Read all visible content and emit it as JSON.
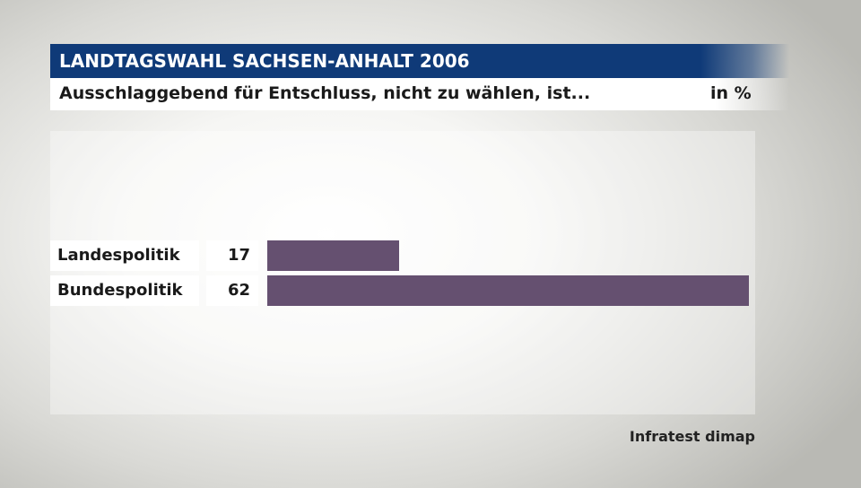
{
  "header": {
    "title": "LANDTAGSWAHL SACHSEN-ANHALT 2006",
    "subtitle": "Ausschlaggebend für Entschluss, nicht zu wählen, ist...",
    "unit": "in %"
  },
  "footer": {
    "source": "Infratest dimap"
  },
  "colors": {
    "title_bar": "#0f3a78",
    "bar": "#655070"
  },
  "chart_data": {
    "type": "bar",
    "orientation": "horizontal",
    "title": "LANDTAGSWAHL SACHSEN-ANHALT 2006",
    "subtitle": "Ausschlaggebend für Entschluss, nicht zu wählen, ist...",
    "unit": "in %",
    "categories": [
      "Landespolitik",
      "Bundespolitik"
    ],
    "values": [
      17,
      62
    ],
    "xlim": [
      0,
      62
    ],
    "grid": false,
    "legend": "none"
  }
}
